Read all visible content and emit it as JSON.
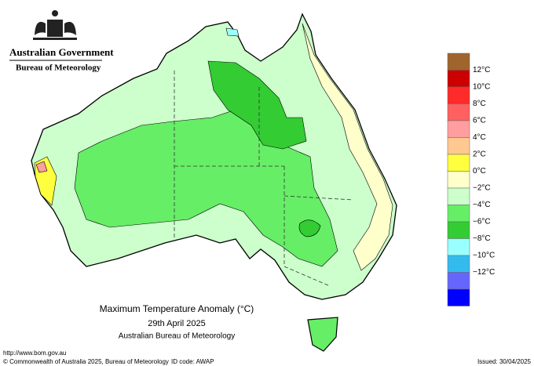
{
  "header": {
    "government": "Australian Government",
    "agency": "Bureau of Meteorology"
  },
  "map": {
    "title": "Maximum Temperature Anomaly (°C)",
    "date": "29th April 2025",
    "source": "Australian Bureau of Meteorology"
  },
  "legend": {
    "colors": [
      "#a0642d",
      "#cc0000",
      "#ff2a2a",
      "#ff6060",
      "#ff9e9e",
      "#ffc890",
      "#ffff40",
      "#ffffcc",
      "#ccffcc",
      "#66ee66",
      "#33cc33",
      "#99ffff",
      "#33bbee",
      "#6666ff",
      "#0000ff"
    ],
    "labels": [
      "12°C",
      "10°C",
      "8°C",
      "6°C",
      "4°C",
      "2°C",
      "0°C",
      "−2°C",
      "−4°C",
      "−6°C",
      "−8°C",
      "−10°C",
      "−12°C"
    ]
  },
  "footer": {
    "url": "http://www.bom.gov.au",
    "copyright": "© Commonwealth of Australia 2025, Bureau of Meteorology",
    "id_code": "ID code: AWAP",
    "issued": "Issued: 30/04/2025"
  }
}
